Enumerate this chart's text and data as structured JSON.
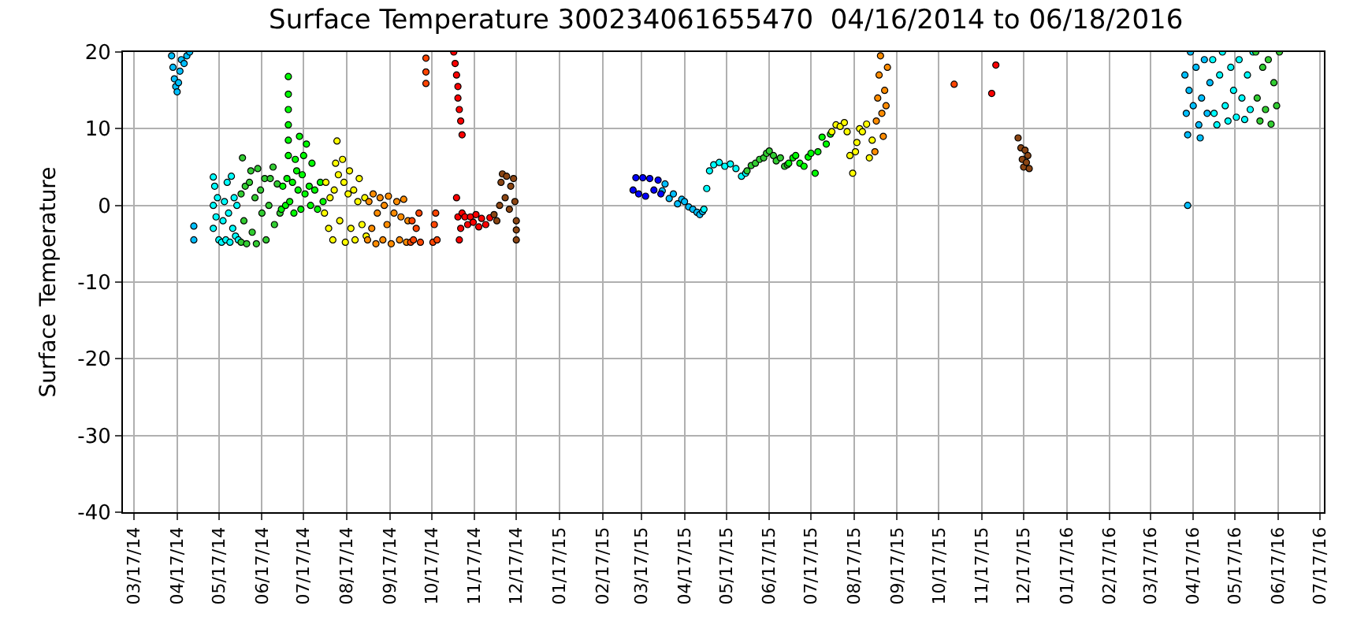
{
  "chart_data": {
    "type": "scatter",
    "title": "Surface Temperature 300234061655470  04/16/2014 to 06/18/2016",
    "ylabel": "Surface Temperature",
    "marker": "circle",
    "grid": true,
    "xlim": [
      "2014-03-09",
      "2016-07-20"
    ],
    "xticks": [
      {
        "value": "2014-03-17",
        "label": "03/17/14"
      },
      {
        "value": "2014-04-17",
        "label": "04/17/14"
      },
      {
        "value": "2014-05-17",
        "label": "05/17/14"
      },
      {
        "value": "2014-06-17",
        "label": "06/17/14"
      },
      {
        "value": "2014-07-17",
        "label": "07/17/14"
      },
      {
        "value": "2014-08-17",
        "label": "08/17/14"
      },
      {
        "value": "2014-09-17",
        "label": "09/17/14"
      },
      {
        "value": "2014-10-17",
        "label": "10/17/14"
      },
      {
        "value": "2014-11-17",
        "label": "11/17/14"
      },
      {
        "value": "2014-12-17",
        "label": "12/17/14"
      },
      {
        "value": "2015-01-17",
        "label": "01/17/15"
      },
      {
        "value": "2015-02-17",
        "label": "02/17/15"
      },
      {
        "value": "2015-03-17",
        "label": "03/17/15"
      },
      {
        "value": "2015-04-17",
        "label": "04/17/15"
      },
      {
        "value": "2015-05-17",
        "label": "05/17/15"
      },
      {
        "value": "2015-06-17",
        "label": "06/17/15"
      },
      {
        "value": "2015-07-17",
        "label": "07/17/15"
      },
      {
        "value": "2015-08-17",
        "label": "08/17/15"
      },
      {
        "value": "2015-09-17",
        "label": "09/17/15"
      },
      {
        "value": "2015-10-17",
        "label": "10/17/15"
      },
      {
        "value": "2015-11-17",
        "label": "11/17/15"
      },
      {
        "value": "2015-12-17",
        "label": "12/17/15"
      },
      {
        "value": "2016-01-17",
        "label": "01/17/16"
      },
      {
        "value": "2016-02-17",
        "label": "02/17/16"
      },
      {
        "value": "2016-03-17",
        "label": "03/17/16"
      },
      {
        "value": "2016-04-17",
        "label": "04/17/16"
      },
      {
        "value": "2016-05-17",
        "label": "05/17/16"
      },
      {
        "value": "2016-06-17",
        "label": "06/17/16"
      },
      {
        "value": "2016-07-17",
        "label": "07/17/16"
      }
    ],
    "ylim": [
      -40,
      20
    ],
    "yticks": [
      -40,
      -30,
      -20,
      -10,
      0,
      10,
      20
    ],
    "series": [
      {
        "color": "#00bfff",
        "x": [
          "2014-04-13",
          "2014-04-14",
          "2014-04-15",
          "2014-04-16",
          "2014-04-17",
          "2014-04-18",
          "2014-04-19",
          "2014-04-20",
          "2014-04-22",
          "2014-04-24",
          "2014-04-26",
          "2014-04-29",
          "2014-04-29",
          "2015-04-01",
          "2015-04-03",
          "2015-04-06",
          "2015-04-09",
          "2015-04-12",
          "2015-04-15",
          "2015-04-17",
          "2015-04-20",
          "2015-04-23",
          "2015-04-26",
          "2015-04-28",
          "2015-04-30",
          "2016-04-13",
          "2016-04-11",
          "2016-04-12",
          "2016-04-13",
          "2016-04-14",
          "2016-04-15",
          "2016-04-17",
          "2016-04-19",
          "2016-04-21",
          "2016-04-22",
          "2016-04-23",
          "2016-04-25",
          "2016-04-27",
          "2016-04-29"
        ],
        "values": [
          19.5,
          18,
          16.5,
          15.5,
          14.8,
          16,
          17.5,
          19,
          18.5,
          19.5,
          20,
          -2.7,
          -4.5,
          1.9,
          2.8,
          0.9,
          1.5,
          0.2,
          0.8,
          0.5,
          -0.2,
          -0.5,
          -0.9,
          -1.2,
          -0.8,
          0,
          17,
          12,
          9.2,
          15,
          20,
          13,
          18,
          10.5,
          8.8,
          14,
          19,
          12,
          16
        ]
      },
      {
        "color": "#00ffff",
        "x": [
          "2014-05-13",
          "2014-05-13",
          "2014-05-13",
          "2014-05-14",
          "2014-05-15",
          "2014-05-16",
          "2014-05-17",
          "2014-05-19",
          "2014-05-20",
          "2014-05-21",
          "2014-05-22",
          "2014-05-23",
          "2014-05-24",
          "2014-05-25",
          "2014-05-26",
          "2014-05-27",
          "2014-05-28",
          "2014-05-29",
          "2014-05-30",
          "2014-05-31",
          "2015-05-01",
          "2015-05-03",
          "2015-05-05",
          "2015-05-08",
          "2015-05-12",
          "2015-05-16",
          "2015-05-20",
          "2015-05-24",
          "2015-05-28",
          "2015-05-31",
          "2016-05-01",
          "2016-05-02",
          "2016-05-04",
          "2016-05-06",
          "2016-05-08",
          "2016-05-10",
          "2016-05-12",
          "2016-05-14",
          "2016-05-16",
          "2016-05-18",
          "2016-05-20",
          "2016-05-22",
          "2016-05-24",
          "2016-05-26",
          "2016-05-28",
          "2016-05-30"
        ],
        "values": [
          3.7,
          0,
          -3,
          2.5,
          -1.5,
          1,
          -4.5,
          -4.8,
          -2,
          0.5,
          -4.5,
          3,
          -1,
          -4.8,
          3.8,
          -3,
          1,
          -4,
          0,
          -4.5,
          -0.5,
          2.2,
          4.5,
          5.3,
          5.6,
          5.1,
          5.4,
          4.8,
          3.8,
          4.2,
          19,
          12,
          10.5,
          17,
          20,
          13,
          11,
          18,
          15,
          11.5,
          19,
          14,
          11.2,
          17,
          12.5,
          20
        ]
      },
      {
        "color": "#32cd32",
        "x": [
          "2014-06-02",
          "2014-06-02",
          "2014-06-03",
          "2014-06-04",
          "2014-06-05",
          "2014-06-06",
          "2014-06-08",
          "2014-06-09",
          "2014-06-10",
          "2014-06-12",
          "2014-06-13",
          "2014-06-14",
          "2014-06-16",
          "2014-06-17",
          "2014-06-19",
          "2014-06-20",
          "2014-06-22",
          "2014-06-23",
          "2014-06-25",
          "2014-06-26",
          "2014-06-28",
          "2014-06-30",
          "2015-06-01",
          "2015-06-04",
          "2015-06-07",
          "2015-06-10",
          "2015-06-13",
          "2015-06-15",
          "2015-06-17",
          "2015-06-20",
          "2015-06-22",
          "2015-06-25",
          "2015-06-28",
          "2015-06-30",
          "2016-06-01",
          "2016-06-02",
          "2016-06-04",
          "2016-06-06",
          "2016-06-08",
          "2016-06-10",
          "2016-06-12",
          "2016-06-14",
          "2016-06-16",
          "2016-06-18"
        ],
        "values": [
          -4.8,
          1.5,
          6.2,
          -2,
          2.5,
          -5,
          3,
          4.5,
          -3.5,
          1,
          -5,
          4.8,
          2,
          -1,
          3.5,
          -4.5,
          0,
          3.5,
          5,
          -2.5,
          2.8,
          -1,
          4.5,
          5.2,
          5.5,
          6,
          6.2,
          6.8,
          7.1,
          6.5,
          5.8,
          6.2,
          5.1,
          5.3,
          20,
          14,
          11,
          18,
          12.5,
          19,
          10.6,
          16,
          13,
          20
        ]
      },
      {
        "color": "#00ff00",
        "x": [
          "2014-07-01",
          "2014-07-02",
          "2014-07-04",
          "2014-07-05",
          "2014-07-06",
          "2014-07-06",
          "2014-07-06",
          "2014-07-06",
          "2014-07-06",
          "2014-07-06",
          "2014-07-07",
          "2014-07-09",
          "2014-07-10",
          "2014-07-11",
          "2014-07-12",
          "2014-07-13",
          "2014-07-14",
          "2014-07-15",
          "2014-07-16",
          "2014-07-17",
          "2014-07-18",
          "2014-07-19",
          "2014-07-21",
          "2014-07-22",
          "2014-07-23",
          "2014-07-25",
          "2014-07-27",
          "2014-07-29",
          "2014-07-31",
          "2015-07-01",
          "2015-07-04",
          "2015-07-06",
          "2015-07-09",
          "2015-07-12",
          "2015-07-15",
          "2015-07-17",
          "2015-07-20",
          "2015-07-22",
          "2015-07-25",
          "2015-07-28",
          "2015-07-31"
        ],
        "values": [
          -0.5,
          2.5,
          0,
          3.5,
          6.5,
          8.5,
          10.5,
          12.5,
          14.5,
          16.8,
          0.5,
          3,
          -1,
          6,
          4.5,
          2,
          9,
          -0.5,
          4,
          6.5,
          1.5,
          8,
          2.5,
          0,
          5.5,
          2,
          -0.5,
          3,
          0.5,
          5.5,
          6.2,
          6.5,
          5.5,
          5.1,
          6.3,
          6.8,
          4.2,
          7,
          8.9,
          8,
          9.3
        ]
      },
      {
        "color": "#ffff00",
        "x": [
          "2014-08-01",
          "2014-08-02",
          "2014-08-04",
          "2014-08-05",
          "2014-08-07",
          "2014-08-08",
          "2014-08-09",
          "2014-08-10",
          "2014-08-11",
          "2014-08-12",
          "2014-08-14",
          "2014-08-15",
          "2014-08-16",
          "2014-08-18",
          "2014-08-19",
          "2014-08-20",
          "2014-08-22",
          "2014-08-23",
          "2014-08-25",
          "2014-08-26",
          "2014-08-28",
          "2014-08-30",
          "2014-08-31",
          "2015-08-01",
          "2015-08-04",
          "2015-08-07",
          "2015-08-10",
          "2015-08-12",
          "2015-08-14",
          "2015-08-16",
          "2015-08-18",
          "2015-08-19",
          "2015-08-21",
          "2015-08-23",
          "2015-08-26",
          "2015-08-28",
          "2015-08-30"
        ],
        "values": [
          -1,
          3,
          -3,
          1,
          -4.5,
          2,
          5.5,
          8.4,
          4,
          -2,
          6,
          3,
          -4.8,
          1.5,
          4.5,
          -3,
          2,
          -4.5,
          0.5,
          3.5,
          -2.5,
          1,
          -4,
          9.6,
          10.5,
          10.3,
          10.8,
          9.6,
          6.5,
          4.2,
          7,
          8.2,
          10,
          9.6,
          10.6,
          6.2,
          8.5
        ]
      },
      {
        "color": "#ff8c00",
        "x": [
          "2014-09-01",
          "2014-09-02",
          "2014-09-04",
          "2014-09-05",
          "2014-09-07",
          "2014-09-08",
          "2014-09-10",
          "2014-09-12",
          "2014-09-13",
          "2014-09-15",
          "2014-09-16",
          "2014-09-18",
          "2014-09-20",
          "2014-09-22",
          "2014-09-24",
          "2014-09-25",
          "2014-09-27",
          "2014-09-29",
          "2014-09-30",
          "2015-09-01",
          "2015-09-02",
          "2015-09-03",
          "2015-09-04",
          "2015-09-05",
          "2015-09-06",
          "2015-09-07",
          "2015-09-08",
          "2015-09-09",
          "2015-09-10"
        ],
        "values": [
          -4.5,
          0.5,
          -3,
          1.5,
          -5,
          -1,
          1,
          -4.5,
          0,
          -2.5,
          1.2,
          -5,
          -1,
          0.5,
          -4.5,
          -1.5,
          0.8,
          -4.8,
          -2,
          7,
          11,
          14,
          17,
          19.5,
          12,
          9,
          15,
          13,
          18
        ]
      },
      {
        "color": "#ff4500",
        "x": [
          "2014-10-02",
          "2014-10-03",
          "2014-10-04",
          "2014-10-06",
          "2014-10-08",
          "2014-10-09",
          "2014-10-13",
          "2014-10-13",
          "2014-10-13",
          "2014-10-18",
          "2014-10-19",
          "2014-10-20",
          "2014-10-21",
          "2015-10-28"
        ],
        "values": [
          -4.8,
          -2,
          -4.5,
          -3,
          -1,
          -4.8,
          19.2,
          17.4,
          15.9,
          -4.8,
          -2.5,
          -1,
          -4.5,
          15.8
        ]
      },
      {
        "color": "#ff0000",
        "x": [
          "2014-11-02",
          "2014-11-03",
          "2014-11-04",
          "2014-11-05",
          "2014-11-05",
          "2014-11-06",
          "2014-11-07",
          "2014-11-08",
          "2014-11-04",
          "2014-11-05",
          "2014-11-06",
          "2014-11-07",
          "2014-11-08",
          "2014-11-10",
          "2014-11-12",
          "2014-11-14",
          "2014-11-16",
          "2014-11-18",
          "2014-11-20",
          "2014-11-22",
          "2014-11-25",
          "2014-11-28",
          "2015-11-24",
          "2015-11-27"
        ],
        "values": [
          20,
          18.5,
          17,
          15.5,
          14,
          12.5,
          11,
          9.2,
          1,
          -1.5,
          -4.5,
          -3,
          -1,
          -1.5,
          -2.5,
          -1.5,
          -2.2,
          -1.2,
          -2.8,
          -1.7,
          -2.5,
          -1.6,
          14.6,
          18.3
        ]
      },
      {
        "color": "#8b4513",
        "x": [
          "2014-12-01",
          "2014-12-03",
          "2014-12-05",
          "2014-12-06",
          "2014-12-07",
          "2014-12-09",
          "2014-12-10",
          "2014-12-12",
          "2014-12-13",
          "2014-12-15",
          "2014-12-16",
          "2014-12-17",
          "2014-12-17",
          "2014-12-17",
          "2015-12-13",
          "2015-12-15",
          "2015-12-16",
          "2015-12-17",
          "2015-12-18",
          "2015-12-19",
          "2015-12-20",
          "2015-12-21"
        ],
        "values": [
          -1.2,
          -2,
          0,
          3,
          4.1,
          1,
          3.8,
          -0.5,
          2.5,
          3.5,
          0.5,
          -2,
          -3.2,
          -4.5,
          8.8,
          7.5,
          6,
          5,
          7.2,
          5.6,
          6.5,
          4.8
        ]
      },
      {
        "color": "#0000ff",
        "x": [
          "2015-03-11",
          "2015-03-13",
          "2015-03-15",
          "2015-03-18",
          "2015-03-20",
          "2015-03-23",
          "2015-03-26",
          "2015-03-29",
          "2015-03-31"
        ],
        "values": [
          2,
          3.6,
          1.5,
          3.6,
          1.2,
          3.5,
          2,
          3.3,
          1.5
        ]
      }
    ]
  }
}
